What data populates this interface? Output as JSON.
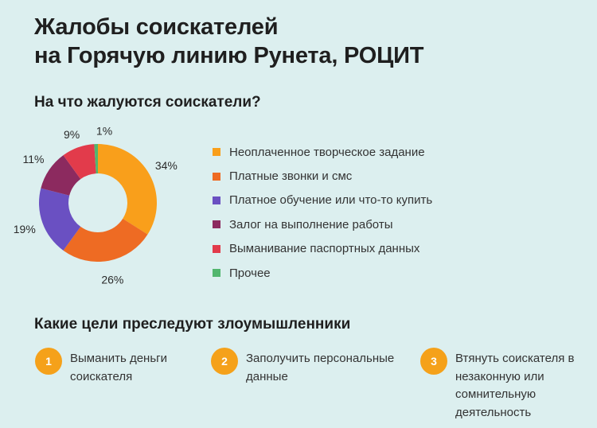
{
  "title_lines": [
    "Жалобы соискателей",
    "на Горячую линию Рунета, РОЦИТ"
  ],
  "chart_heading": "На что жалуются соискатели?",
  "goals_heading": "Какие цели преследуют злоумышленники",
  "chart_data": {
    "type": "pie",
    "donut": true,
    "categories": [
      "Неоплаченное творческое задание",
      "Платные звонки и смс",
      "Платное обучение или что-то купить",
      "Залог на выполнение работы",
      "Выманивание паспортных данных",
      "Прочее"
    ],
    "values": [
      34,
      26,
      19,
      11,
      9,
      1
    ],
    "value_labels": [
      "34%",
      "26%",
      "19%",
      "11%",
      "9%",
      "1%"
    ],
    "colors": [
      "#f99f1b",
      "#ee6b23",
      "#6a50c2",
      "#8c2a5f",
      "#e23b4b",
      "#52b66e"
    ],
    "legend_position": "right"
  },
  "goals": [
    {
      "number": "1",
      "text": "Выманить деньги соискателя"
    },
    {
      "number": "2",
      "text": "Заполучить персональные данные"
    },
    {
      "number": "3",
      "text": "Втянуть соискателя в незаконную или сомнительную деятельность"
    }
  ]
}
